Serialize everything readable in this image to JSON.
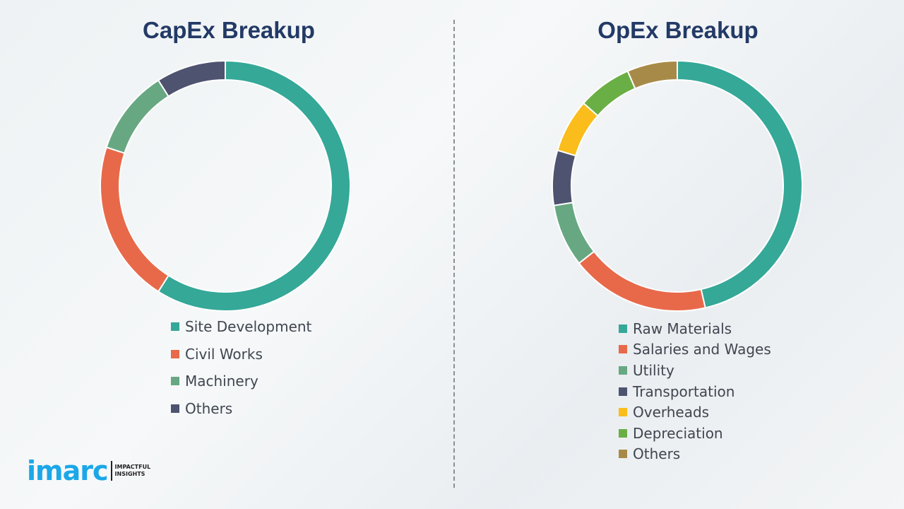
{
  "chart_data": [
    {
      "type": "pie",
      "variant": "donut",
      "title": "CapEx Breakup",
      "categories": [
        "Site Development",
        "Civil Works",
        "Machinery",
        "Others"
      ],
      "values": [
        59,
        21,
        11,
        9
      ],
      "colors": [
        "#35A898",
        "#E8694A",
        "#67A883",
        "#4E5370"
      ],
      "legend": "bottom"
    },
    {
      "type": "pie",
      "variant": "donut",
      "title": "OpEx Breakup",
      "categories": [
        "Raw Materials",
        "Salaries and Wages",
        "Utility",
        "Transportation",
        "Overheads",
        "Depreciation",
        "Others"
      ],
      "values": [
        46.4,
        18,
        8.1,
        7.1,
        6.9,
        7,
        6.5
      ],
      "colors": [
        "#35A898",
        "#E8694A",
        "#67A883",
        "#4E5370",
        "#FABD1C",
        "#6AAF45",
        "#A88A48"
      ],
      "legend": "bottom"
    }
  ],
  "logo": {
    "brand": "imarc",
    "tagline_1": "IMPACTFUL",
    "tagline_2": "INSIGHTS"
  }
}
